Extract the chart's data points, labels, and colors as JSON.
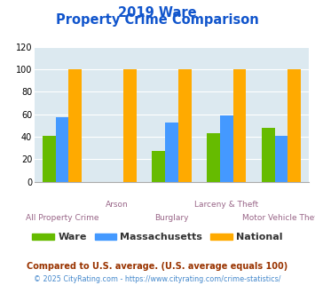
{
  "title_line1": "2019 Ware",
  "title_line2": "Property Crime Comparison",
  "categories": [
    "All Property Crime",
    "Arson",
    "Burglary",
    "Larceny & Theft",
    "Motor Vehicle Theft"
  ],
  "ware": [
    41,
    0,
    27,
    43,
    48
  ],
  "massachusetts": [
    57,
    0,
    53,
    59,
    41
  ],
  "national": [
    100,
    100,
    100,
    100,
    100
  ],
  "bar_colors": {
    "ware": "#66bb00",
    "massachusetts": "#4499ff",
    "national": "#ffaa00"
  },
  "ylim": [
    0,
    120
  ],
  "yticks": [
    0,
    20,
    40,
    60,
    80,
    100,
    120
  ],
  "plot_bg": "#dce9f0",
  "title_color": "#1155cc",
  "xlabel_color": "#996688",
  "legend_label_color": "#333333",
  "footnote1": "Compared to U.S. average. (U.S. average equals 100)",
  "footnote2": "© 2025 CityRating.com - https://www.cityrating.com/crime-statistics/",
  "footnote1_color": "#993300",
  "footnote2_color": "#4488cc"
}
